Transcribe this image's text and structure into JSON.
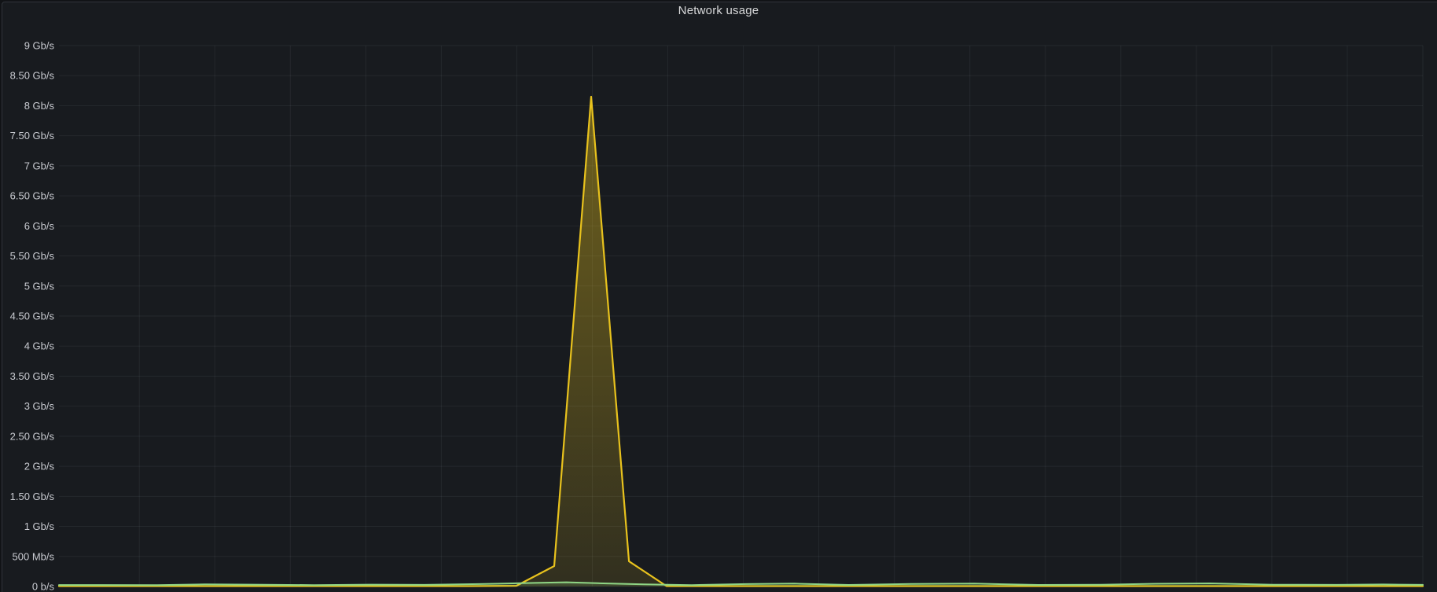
{
  "panel": {
    "title": "Network usage",
    "background_color": "#181b1f",
    "border_color": "#30343a",
    "title_color": "#d8d9da"
  },
  "chart_data": {
    "type": "area",
    "title": "Network usage",
    "xlabel": "",
    "ylabel": "",
    "y_unit": "bits per second",
    "ylim": [
      0,
      9
    ],
    "grid": true,
    "legend_position": "none",
    "x_axis_labels_visible": false,
    "gridline_color": "rgba(204,212,220,0.07)",
    "y_ticks": [
      {
        "value": 9,
        "label": "9 Gb/s"
      },
      {
        "value": 8.5,
        "label": "8.50 Gb/s"
      },
      {
        "value": 8,
        "label": "8 Gb/s"
      },
      {
        "value": 7.5,
        "label": "7.50 Gb/s"
      },
      {
        "value": 7,
        "label": "7 Gb/s"
      },
      {
        "value": 6.5,
        "label": "6.50 Gb/s"
      },
      {
        "value": 6,
        "label": "6 Gb/s"
      },
      {
        "value": 5.5,
        "label": "5.50 Gb/s"
      },
      {
        "value": 5,
        "label": "5 Gb/s"
      },
      {
        "value": 4.5,
        "label": "4.50 Gb/s"
      },
      {
        "value": 4,
        "label": "4 Gb/s"
      },
      {
        "value": 3.5,
        "label": "3.50 Gb/s"
      },
      {
        "value": 3,
        "label": "3 Gb/s"
      },
      {
        "value": 2.5,
        "label": "2.50 Gb/s"
      },
      {
        "value": 2,
        "label": "2 Gb/s"
      },
      {
        "value": 1.5,
        "label": "1.50 Gb/s"
      },
      {
        "value": 1,
        "label": "1 Gb/s"
      },
      {
        "value": 0.5,
        "label": "500 Mb/s"
      },
      {
        "value": 0,
        "label": "0 b/s"
      }
    ],
    "x_gridline_count": 18,
    "series": [
      {
        "name": "yellow",
        "color": "#e8c21d",
        "line_width": 2.2,
        "fill_opacity_top": 0.42,
        "fill_opacity_bottom": 0.12,
        "peak_value_gbps": 8.15,
        "points": [
          [
            0.0,
            0.006
          ],
          [
            0.15,
            0.006
          ],
          [
            0.3,
            0.006
          ],
          [
            0.3354,
            0.012
          ],
          [
            0.3631,
            0.34
          ],
          [
            0.3902,
            8.15
          ],
          [
            0.4179,
            0.42
          ],
          [
            0.4455,
            0.006
          ],
          [
            0.6,
            0.006
          ],
          [
            0.8,
            0.006
          ],
          [
            1.0,
            0.006
          ]
        ]
      },
      {
        "name": "green",
        "color": "#8fd585",
        "line_width": 2,
        "fill_opacity_top": 0.3,
        "fill_opacity_bottom": 0.08,
        "points": [
          [
            0.0,
            0.025
          ],
          [
            0.072,
            0.022
          ],
          [
            0.107,
            0.035
          ],
          [
            0.141,
            0.032
          ],
          [
            0.187,
            0.024
          ],
          [
            0.228,
            0.032
          ],
          [
            0.268,
            0.028
          ],
          [
            0.308,
            0.04
          ],
          [
            0.349,
            0.06
          ],
          [
            0.372,
            0.07
          ],
          [
            0.395,
            0.055
          ],
          [
            0.429,
            0.035
          ],
          [
            0.464,
            0.024
          ],
          [
            0.504,
            0.04
          ],
          [
            0.539,
            0.048
          ],
          [
            0.579,
            0.026
          ],
          [
            0.625,
            0.042
          ],
          [
            0.671,
            0.048
          ],
          [
            0.718,
            0.026
          ],
          [
            0.764,
            0.03
          ],
          [
            0.804,
            0.046
          ],
          [
            0.844,
            0.052
          ],
          [
            0.89,
            0.03
          ],
          [
            0.937,
            0.028
          ],
          [
            0.971,
            0.034
          ],
          [
            1.0,
            0.028
          ]
        ]
      }
    ]
  }
}
